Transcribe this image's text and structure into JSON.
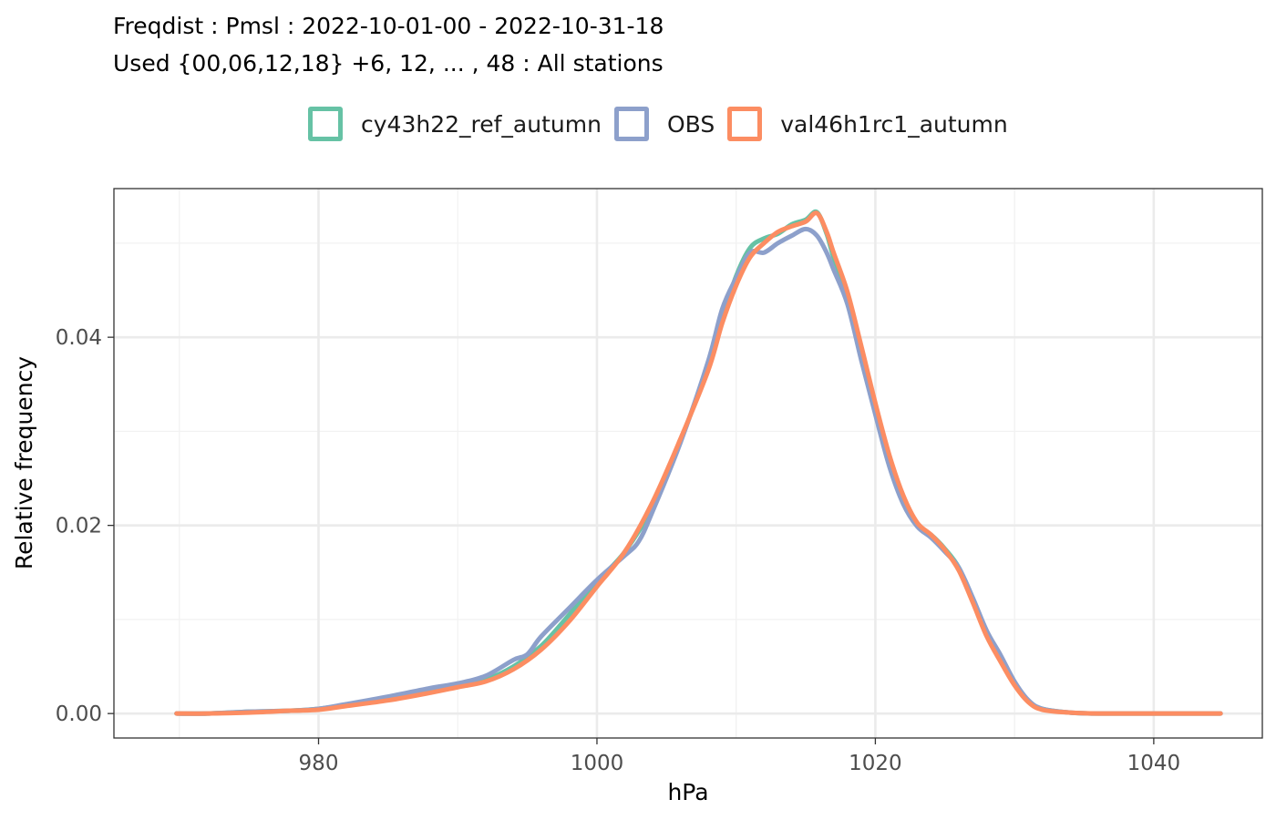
{
  "title": {
    "line1": "Freqdist : Pmsl : 2022-10-01-00 - 2022-10-31-18",
    "line2": "Used {00,06,12,18} +6, 12, ... , 48 : All stations"
  },
  "chart_data": {
    "type": "line",
    "xlabel": "hPa",
    "ylabel": "Relative frequency",
    "xlim": [
      965.3,
      1047.8
    ],
    "ylim": [
      -0.0026,
      0.0558
    ],
    "xticks": [
      980,
      1000,
      1020,
      1040
    ],
    "xtick_labels": [
      "980",
      "1000",
      "1020",
      "1040"
    ],
    "yticks": [
      0.0,
      0.02,
      0.04
    ],
    "ytick_labels": [
      "0.00",
      "0.02",
      "0.04"
    ],
    "grid": true,
    "legend_position": "top",
    "series": [
      {
        "name": "cy43h22_ref_autumn",
        "color": "#66c2a5",
        "x": [
          969.8,
          972,
          975,
          978,
          980,
          982,
          985,
          988,
          990,
          992,
          994,
          996,
          998,
          1000,
          1002,
          1004,
          1006,
          1008,
          1009,
          1010,
          1011,
          1012,
          1013,
          1014,
          1015,
          1015.8,
          1016.5,
          1017,
          1018,
          1019,
          1020,
          1021,
          1022,
          1023,
          1024,
          1025,
          1026,
          1027,
          1028,
          1029,
          1030,
          1031,
          1032,
          1034,
          1036,
          1040,
          1044.8
        ],
        "y": [
          0.0,
          0.0,
          0.0002,
          0.0003,
          0.0005,
          0.0009,
          0.0016,
          0.0024,
          0.003,
          0.0036,
          0.005,
          0.0072,
          0.0105,
          0.014,
          0.0172,
          0.022,
          0.029,
          0.037,
          0.042,
          0.0465,
          0.0495,
          0.0505,
          0.051,
          0.052,
          0.0525,
          0.0533,
          0.051,
          0.0485,
          0.0445,
          0.0385,
          0.032,
          0.0268,
          0.0225,
          0.02,
          0.019,
          0.0175,
          0.0155,
          0.012,
          0.0085,
          0.0058,
          0.0032,
          0.0013,
          0.0005,
          0.0001,
          0.0,
          0.0,
          0.0
        ]
      },
      {
        "name": "OBS",
        "color": "#8da0cb",
        "x": [
          969.8,
          972,
          975,
          978,
          980,
          982,
          985,
          988,
          990,
          992,
          994,
          995,
          996,
          998,
          1000,
          1002,
          1003,
          1004,
          1006,
          1008,
          1009,
          1010,
          1011,
          1012,
          1013,
          1014,
          1015,
          1015.8,
          1016.5,
          1017,
          1018,
          1019,
          1020,
          1021,
          1022,
          1023,
          1024,
          1025,
          1026,
          1027,
          1028,
          1029,
          1030,
          1031,
          1032,
          1034,
          1036,
          1040,
          1044.8
        ],
        "y": [
          0.0,
          0.0,
          0.0002,
          0.0003,
          0.0005,
          0.001,
          0.0018,
          0.0027,
          0.0032,
          0.004,
          0.0057,
          0.0063,
          0.0082,
          0.0112,
          0.0142,
          0.0168,
          0.0183,
          0.0215,
          0.0288,
          0.0375,
          0.043,
          0.0463,
          0.049,
          0.049,
          0.05,
          0.0508,
          0.0515,
          0.0508,
          0.049,
          0.0472,
          0.0435,
          0.0375,
          0.0318,
          0.0263,
          0.0223,
          0.0199,
          0.0187,
          0.0172,
          0.0155,
          0.0123,
          0.0088,
          0.0062,
          0.0034,
          0.0014,
          0.0005,
          0.0001,
          0.0,
          0.0,
          0.0
        ]
      },
      {
        "name": "val46h1rc1_autumn",
        "color": "#fc8d62",
        "x": [
          969.8,
          972,
          975,
          978,
          980,
          982,
          985,
          988,
          990,
          992,
          994,
          996,
          998,
          1000,
          1002,
          1004,
          1006,
          1008,
          1009,
          1010,
          1011,
          1012,
          1013,
          1014,
          1015,
          1015.8,
          1016.5,
          1017,
          1018,
          1019,
          1020,
          1021,
          1022,
          1023,
          1024,
          1025,
          1026,
          1027,
          1028,
          1029,
          1030,
          1031,
          1032,
          1034,
          1036,
          1040,
          1044.8
        ],
        "y": [
          0.0,
          0.0,
          0.0001,
          0.0003,
          0.0004,
          0.0008,
          0.0014,
          0.0022,
          0.0028,
          0.0034,
          0.0047,
          0.0068,
          0.0098,
          0.0135,
          0.0172,
          0.0225,
          0.0292,
          0.0365,
          0.0415,
          0.0455,
          0.0485,
          0.05,
          0.0512,
          0.0518,
          0.0523,
          0.0532,
          0.0512,
          0.049,
          0.0448,
          0.039,
          0.033,
          0.0275,
          0.0232,
          0.0203,
          0.019,
          0.0174,
          0.0152,
          0.0118,
          0.0082,
          0.0055,
          0.003,
          0.0012,
          0.0004,
          0.0001,
          0.0,
          0.0,
          0.0
        ]
      }
    ]
  }
}
